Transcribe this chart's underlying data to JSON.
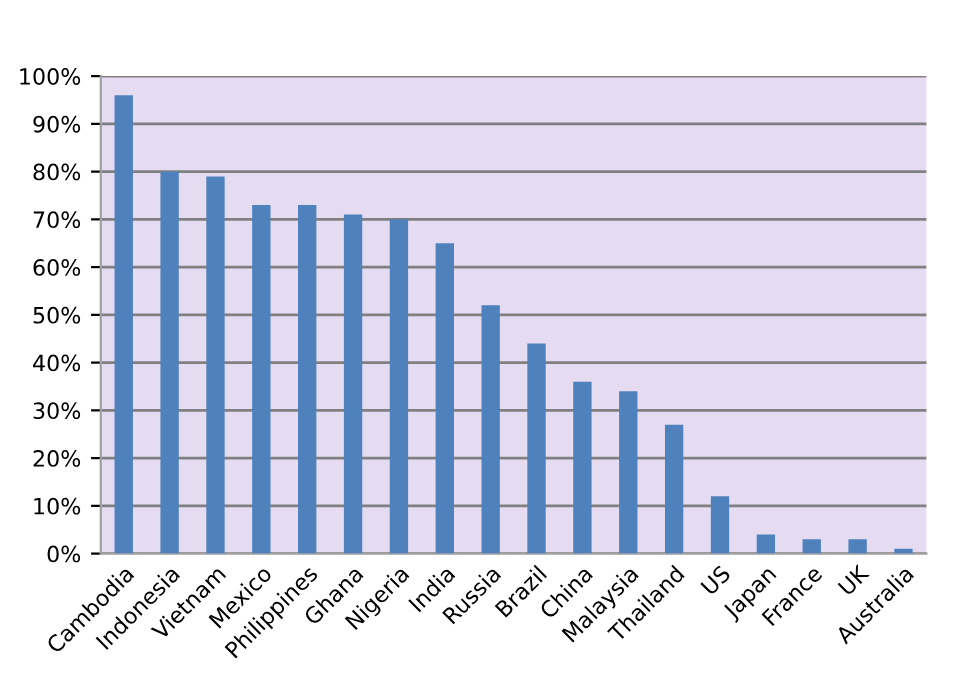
{
  "chart_data": {
    "type": "bar",
    "categories": [
      "Cambodia",
      "Indonesia",
      "Vietnam",
      "Mexico",
      "Philippines",
      "Ghana",
      "Nigeria",
      "India",
      "Russia",
      "Brazil",
      "China",
      "Malaysia",
      "Thailand",
      "US",
      "Japan",
      "France",
      "UK",
      "Australia"
    ],
    "values": [
      96,
      80,
      79,
      73,
      73,
      71,
      70,
      65,
      52,
      44,
      36,
      34,
      27,
      12,
      4,
      3,
      3,
      1
    ],
    "color": "#4f81bd",
    "ylim": [
      0,
      100
    ],
    "yticks": [
      {
        "value": 0,
        "label": "0%"
      },
      {
        "value": 10,
        "label": "10%"
      },
      {
        "value": 20,
        "label": "20%"
      },
      {
        "value": 30,
        "label": "30%"
      },
      {
        "value": 40,
        "label": "40%"
      },
      {
        "value": 50,
        "label": "50%"
      },
      {
        "value": 60,
        "label": "60%"
      },
      {
        "value": 70,
        "label": "70%"
      },
      {
        "value": 80,
        "label": "80%"
      },
      {
        "value": 90,
        "label": "90%"
      },
      {
        "value": 100,
        "label": "100%"
      }
    ],
    "grid": "y"
  }
}
